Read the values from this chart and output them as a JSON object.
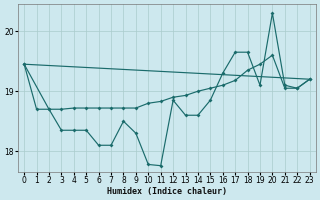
{
  "xlabel": "Humidex (Indice chaleur)",
  "bg_color": "#cde8ee",
  "grid_color": "#aacccc",
  "line_color": "#1a6b6b",
  "xlim": [
    -0.5,
    23.5
  ],
  "ylim": [
    17.65,
    20.45
  ],
  "yticks": [
    18,
    19,
    20
  ],
  "xticks": [
    0,
    1,
    2,
    3,
    4,
    5,
    6,
    7,
    8,
    9,
    10,
    11,
    12,
    13,
    14,
    15,
    16,
    17,
    18,
    19,
    20,
    21,
    22,
    23
  ],
  "s1x": [
    0,
    1,
    2,
    3,
    4,
    5,
    6,
    7,
    8,
    9,
    10,
    11,
    12,
    13,
    14,
    15,
    16,
    17,
    18,
    19,
    20,
    21,
    22,
    23
  ],
  "s1y": [
    19.45,
    18.7,
    18.7,
    18.35,
    18.35,
    18.35,
    18.1,
    18.1,
    18.5,
    18.3,
    17.78,
    17.76,
    18.85,
    18.6,
    18.6,
    18.85,
    19.3,
    19.65,
    19.65,
    19.1,
    20.3,
    19.1,
    19.05,
    19.2
  ],
  "s2x": [
    0,
    2,
    3,
    4,
    5,
    6,
    7,
    8,
    9,
    10,
    11,
    12,
    13,
    14,
    15,
    16,
    17,
    18,
    19,
    20,
    21,
    22,
    23
  ],
  "s2y": [
    19.45,
    18.7,
    18.7,
    18.72,
    18.72,
    18.72,
    18.72,
    18.72,
    18.72,
    18.8,
    18.83,
    18.9,
    18.93,
    19.0,
    19.05,
    19.1,
    19.18,
    19.35,
    19.45,
    19.6,
    19.05,
    19.05,
    19.2
  ],
  "s3x": [
    0,
    23
  ],
  "s3y": [
    19.45,
    19.2
  ]
}
